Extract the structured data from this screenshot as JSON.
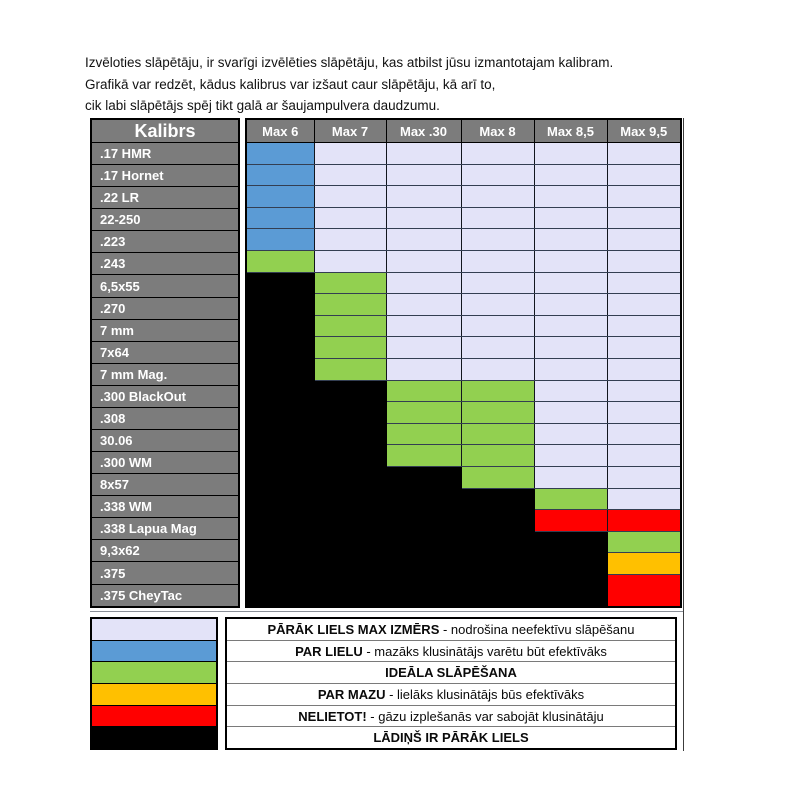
{
  "intro": {
    "line1": "Izvēloties slāpētāju, ir svarīgi izvēlēties slāpētāju, kas atbilst jūsu izmantotajam kalibram.",
    "line2": "Grafikā var redzēt, kādus kalibrus var izšaut caur slāpētāju, kā arī to,",
    "line3": "cik labi slāpētājs spēj tikt galā ar šaujampulvera daudzumu."
  },
  "chart_data": {
    "type": "heatmap",
    "row_header": "Kalibrs",
    "columns": [
      "Max 6",
      "Max 7",
      "Max .30",
      "Max 8",
      "Max 8,5",
      "Max 9,5"
    ],
    "rows": [
      {
        "label": ".17 HMR",
        "cells": [
          "L",
          "T",
          "T",
          "T",
          "T",
          "T"
        ]
      },
      {
        "label": ".17 Hornet",
        "cells": [
          "L",
          "T",
          "T",
          "T",
          "T",
          "T"
        ]
      },
      {
        "label": ".22 LR",
        "cells": [
          "L",
          "T",
          "T",
          "T",
          "T",
          "T"
        ]
      },
      {
        "label": "22-250",
        "cells": [
          "L",
          "T",
          "T",
          "T",
          "T",
          "T"
        ]
      },
      {
        "label": ".223",
        "cells": [
          "L",
          "T",
          "T",
          "T",
          "T",
          "T"
        ]
      },
      {
        "label": ".243",
        "cells": [
          "I",
          "T",
          "T",
          "T",
          "T",
          "T"
        ]
      },
      {
        "label": "6,5x55",
        "cells": [
          "B",
          "I",
          "T",
          "T",
          "T",
          "T"
        ]
      },
      {
        "label": ".270",
        "cells": [
          "B",
          "I",
          "T",
          "T",
          "T",
          "T"
        ]
      },
      {
        "label": "7 mm",
        "cells": [
          "B",
          "I",
          "T",
          "T",
          "T",
          "T"
        ]
      },
      {
        "label": "7x64",
        "cells": [
          "B",
          "I",
          "T",
          "T",
          "T",
          "T"
        ]
      },
      {
        "label": "7 mm Mag.",
        "cells": [
          "B",
          "I",
          "T",
          "T",
          "T",
          "T"
        ]
      },
      {
        "label": ".300 BlackOut",
        "cells": [
          "B",
          "B",
          "I",
          "I",
          "T",
          "T"
        ]
      },
      {
        "label": ".308",
        "cells": [
          "B",
          "B",
          "I",
          "I",
          "T",
          "T"
        ]
      },
      {
        "label": "30.06",
        "cells": [
          "B",
          "B",
          "I",
          "I",
          "T",
          "T"
        ]
      },
      {
        "label": ".300 WM",
        "cells": [
          "B",
          "B",
          "I",
          "I",
          "T",
          "T"
        ]
      },
      {
        "label": "8x57",
        "cells": [
          "B",
          "B",
          "B",
          "I",
          "T",
          "T"
        ]
      },
      {
        "label": ".338 WM",
        "cells": [
          "B",
          "B",
          "B",
          "B",
          "I",
          "T"
        ]
      },
      {
        "label": ".338 Lapua Mag",
        "cells": [
          "B",
          "B",
          "B",
          "B",
          "N",
          "N"
        ]
      },
      {
        "label": "9,3x62",
        "cells": [
          "B",
          "B",
          "B",
          "B",
          "B",
          "I"
        ]
      },
      {
        "label": ".375",
        "cells": [
          "B",
          "B",
          "B",
          "B",
          "B",
          "M"
        ]
      },
      {
        "label": ".375 CheyTac",
        "cells": [
          "B",
          "B",
          "B",
          "B",
          "B",
          "N"
        ]
      }
    ],
    "legend": [
      {
        "key": "T",
        "color": "#E3E3F8",
        "bold": "PĀRĀK LIELS MAX IZMĒRS",
        "text": " - nodrošina neefektīvu slāpēšanu"
      },
      {
        "key": "L",
        "color": "#5B9BD5",
        "bold": "PAR LIELU",
        "text": " - mazāks klusinātājs varētu būt efektīvāks"
      },
      {
        "key": "I",
        "color": "#92D050",
        "bold": "IDEĀLA SLĀPĒŠANA",
        "text": ""
      },
      {
        "key": "M",
        "color": "#FFC000",
        "bold": "PAR MAZU",
        "text": " - lielāks klusinātājs būs efektīvāks"
      },
      {
        "key": "N",
        "color": "#FF0000",
        "bold": "NELIETOT!",
        "text": " - gāzu izplešanās var sabojāt klusinātāju"
      },
      {
        "key": "B",
        "color": "#000000",
        "bold": "LĀDIŅŠ IR PĀRĀK LIELS",
        "text": ""
      }
    ],
    "header_color": "#7C7C7C",
    "header_text_color": "#FFFFFF"
  }
}
